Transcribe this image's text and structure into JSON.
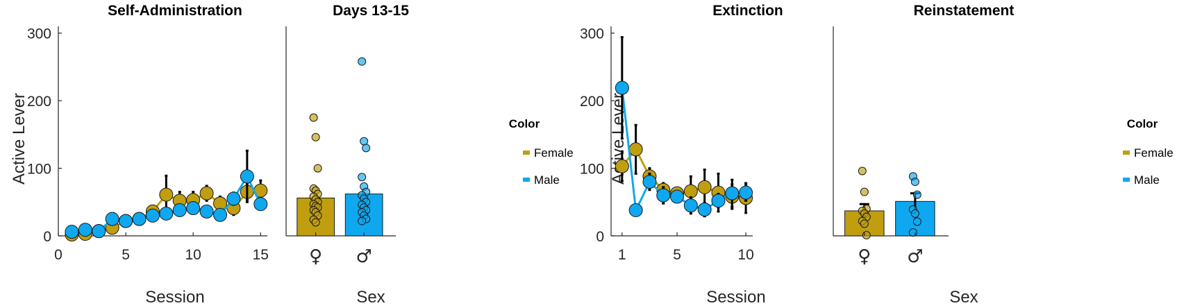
{
  "colors": {
    "female": "#c09e0f",
    "male": "#0fa8f0",
    "err": "#000000"
  },
  "legends": [
    {
      "title": "Color",
      "entries": [
        "Female",
        "Male"
      ]
    },
    {
      "title": "Color",
      "entries": [
        "Female",
        "Male"
      ]
    }
  ],
  "chart_data": [
    {
      "type": "line",
      "title": "Self-Administration",
      "xlabel": "Session",
      "ylabel": "Active Lever",
      "xlim": [
        0,
        15.5
      ],
      "ylim": [
        0,
        310
      ],
      "xticks": [
        0,
        5,
        10,
        15
      ],
      "yticks": [
        0,
        100,
        200,
        300
      ],
      "series": [
        {
          "name": "Female",
          "x": [
            1,
            2,
            3,
            4,
            5,
            6,
            7,
            8,
            9,
            10,
            11,
            12,
            13,
            14,
            15
          ],
          "y": [
            2,
            3,
            7,
            12,
            22,
            25,
            36,
            61,
            52,
            53,
            63,
            48,
            41,
            65,
            67
          ],
          "err": [
            1,
            1,
            2,
            3,
            4,
            4,
            8,
            28,
            13,
            12,
            11,
            10,
            10,
            12,
            15
          ]
        },
        {
          "name": "Male",
          "x": [
            1,
            2,
            3,
            4,
            5,
            6,
            7,
            8,
            9,
            10,
            11,
            12,
            13,
            14,
            15
          ],
          "y": [
            6,
            9,
            7,
            25,
            22,
            25,
            30,
            33,
            38,
            41,
            36,
            31,
            55,
            88,
            47
          ],
          "err": [
            1,
            2,
            1,
            4,
            3,
            3,
            4,
            5,
            5,
            5,
            4,
            4,
            9,
            38,
            8
          ]
        }
      ]
    },
    {
      "type": "bar",
      "title": "Days 13-15",
      "xlabel": "Sex",
      "ylabel": "",
      "ylim": [
        0,
        310
      ],
      "categories": [
        "♀",
        "♂"
      ],
      "values": [
        56,
        62
      ],
      "err": [
        0,
        0
      ],
      "points": [
        [
          175,
          146,
          100,
          70,
          67,
          62,
          58,
          54,
          50,
          47,
          44,
          42,
          38,
          35,
          30,
          24,
          20
        ],
        [
          258,
          140,
          130,
          87,
          73,
          65,
          60,
          55,
          50,
          46,
          42,
          38,
          35,
          30,
          25,
          22
        ]
      ]
    },
    {
      "type": "line",
      "title": "Extinction",
      "xlabel": "Session",
      "ylabel": "Active Lever",
      "xlim": [
        0.2,
        10.5
      ],
      "ylim": [
        0,
        310
      ],
      "xticks": [
        1,
        5,
        10
      ],
      "yticks": [
        0,
        100,
        200,
        300
      ],
      "series": [
        {
          "name": "Female",
          "x": [
            1,
            2,
            3,
            4,
            5,
            6,
            7,
            8,
            9,
            10
          ],
          "y": [
            103,
            128,
            88,
            68,
            63,
            66,
            72,
            64,
            58,
            56
          ],
          "err": [
            22,
            36,
            12,
            10,
            8,
            22,
            26,
            28,
            18,
            22
          ]
        },
        {
          "name": "Male",
          "x": [
            1,
            2,
            3,
            4,
            5,
            6,
            7,
            8,
            9,
            10
          ],
          "y": [
            219,
            38,
            80,
            60,
            58,
            45,
            39,
            52,
            63,
            64
          ],
          "err": [
            75,
            8,
            12,
            12,
            8,
            12,
            10,
            10,
            20,
            12
          ]
        }
      ]
    },
    {
      "type": "bar",
      "title": "Reinstatement",
      "xlabel": "Sex",
      "ylabel": "",
      "ylim": [
        0,
        310
      ],
      "categories": [
        "♀",
        "♂"
      ],
      "values": [
        37,
        51
      ],
      "err": [
        10,
        12
      ],
      "points": [
        [
          96,
          65,
          40,
          37,
          33,
          28,
          22,
          18,
          1
        ],
        [
          88,
          80,
          61,
          39,
          33,
          21,
          5
        ]
      ]
    }
  ]
}
